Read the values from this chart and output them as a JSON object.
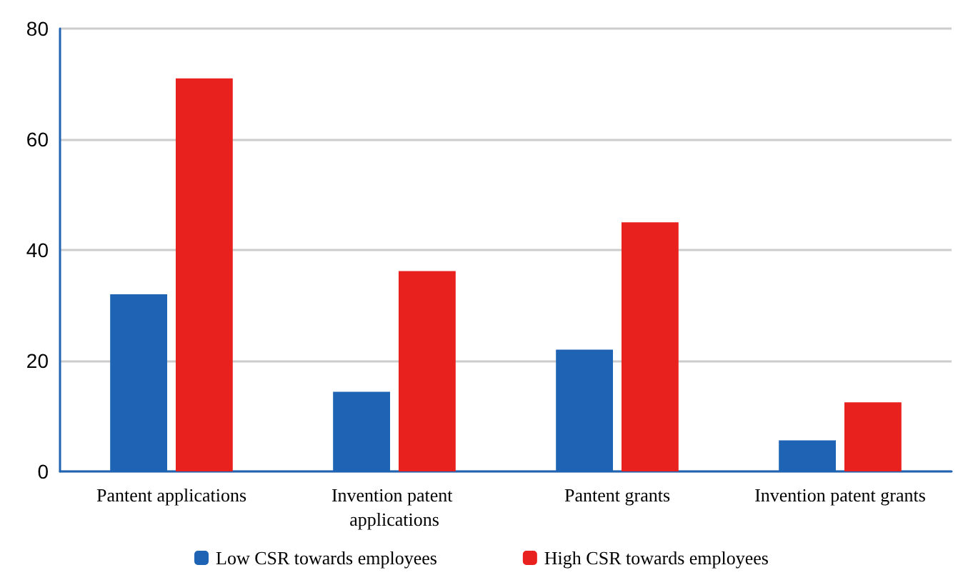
{
  "chart_data": {
    "type": "bar",
    "categories": [
      "Pantent applications",
      "Invention patent applications",
      "Pantent grants",
      "Invention patent grants"
    ],
    "series": [
      {
        "name": "Low CSR towards employees",
        "color": "#1f63b4",
        "values": [
          32,
          14.4,
          22,
          5.6
        ]
      },
      {
        "name": "High CSR towards employees",
        "color": "#e8211f",
        "values": [
          71,
          36.2,
          45,
          12.5
        ]
      }
    ],
    "ylim": [
      0,
      80
    ],
    "yticks": [
      0,
      20,
      40,
      60,
      80
    ],
    "grid": "y",
    "legend": "bottom"
  }
}
